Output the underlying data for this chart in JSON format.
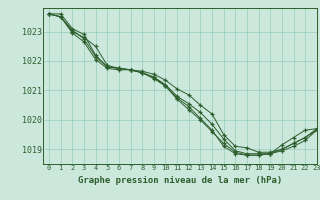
{
  "title": "Graphe pression niveau de la mer (hPa)",
  "bg_color": "#cce8dd",
  "grid_color": "#99ccbb",
  "line_color": "#2d5e2d",
  "xlim": [
    -0.5,
    23
  ],
  "ylim": [
    1018.5,
    1023.8
  ],
  "yticks": [
    1019,
    1020,
    1021,
    1022,
    1023
  ],
  "xticks": [
    0,
    1,
    2,
    3,
    4,
    5,
    6,
    7,
    8,
    9,
    10,
    11,
    12,
    13,
    14,
    15,
    16,
    17,
    18,
    19,
    20,
    21,
    22,
    23
  ],
  "series": [
    [
      1023.6,
      1023.6,
      1023.1,
      1022.9,
      1022.2,
      1021.8,
      1021.75,
      1021.7,
      1021.65,
      1021.55,
      1021.35,
      1021.05,
      1020.85,
      1020.5,
      1020.2,
      1019.5,
      1019.1,
      1019.05,
      1018.9,
      1018.9,
      1019.0,
      1019.2,
      1019.4,
      1019.7
    ],
    [
      1023.6,
      1023.5,
      1023.0,
      1022.8,
      1022.5,
      1021.85,
      1021.75,
      1021.7,
      1021.6,
      1021.45,
      1021.15,
      1020.75,
      1020.45,
      1020.05,
      1019.65,
      1019.1,
      1018.85,
      1018.8,
      1018.8,
      1018.85,
      1019.15,
      1019.4,
      1019.65,
      1019.7
    ],
    [
      1023.6,
      1023.5,
      1022.95,
      1022.65,
      1022.05,
      1021.75,
      1021.7,
      1021.7,
      1021.6,
      1021.4,
      1021.15,
      1020.7,
      1020.35,
      1020.0,
      1019.6,
      1019.2,
      1018.9,
      1018.8,
      1018.8,
      1018.85,
      1019.0,
      1019.2,
      1019.4,
      1019.65
    ],
    [
      1023.6,
      1023.5,
      1023.05,
      1022.75,
      1022.15,
      1021.8,
      1021.75,
      1021.7,
      1021.6,
      1021.45,
      1021.2,
      1020.8,
      1020.55,
      1020.25,
      1019.85,
      1019.35,
      1018.95,
      1018.85,
      1018.85,
      1018.85,
      1018.95,
      1019.1,
      1019.3,
      1019.65
    ]
  ]
}
